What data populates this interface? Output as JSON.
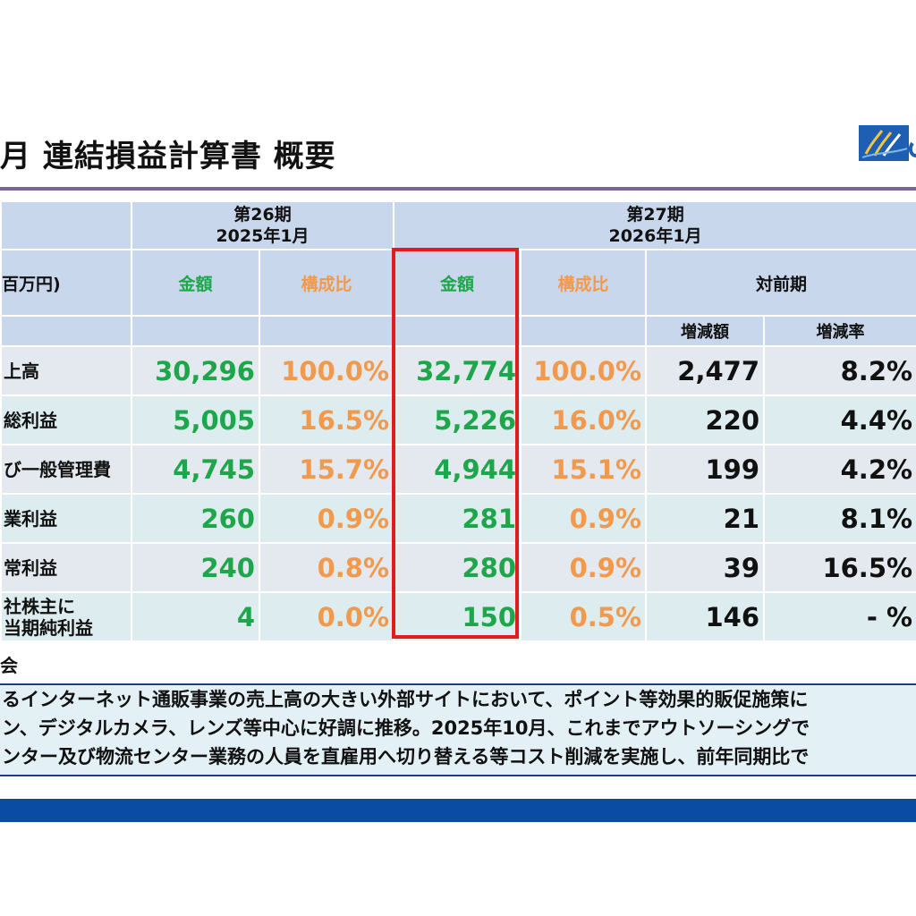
{
  "title": "月 連結損益計算書 概要",
  "colors": {
    "amount": "#1ea64a",
    "ratio": "#f19a4e",
    "highlight": "#e21b1b",
    "header_bg": "#c9d7ec",
    "bar": "#0a4ba3"
  },
  "table": {
    "period26": {
      "line1": "第26期",
      "line2": "2025年1月"
    },
    "period27": {
      "line1": "第27期",
      "line2": "2026年1月"
    },
    "unit_label": "百万円)",
    "amount_label": "金額",
    "ratio_label": "構成比",
    "yoy_label": "対前期",
    "diff_label": "増減額",
    "rate_label": "増減率",
    "rows": [
      {
        "label": "上高",
        "a26": "30,296",
        "r26": "100.0%",
        "a27": "32,774",
        "r27": "100.0%",
        "diff": "2,477",
        "rate": "8.2%"
      },
      {
        "label": "総利益",
        "a26": "5,005",
        "r26": "16.5%",
        "a27": "5,226",
        "r27": "16.0%",
        "diff": "220",
        "rate": "4.4%"
      },
      {
        "label": "び一般管理費",
        "a26": "4,745",
        "r26": "15.7%",
        "a27": "4,944",
        "r27": "15.1%",
        "diff": "199",
        "rate": "4.2%"
      },
      {
        "label": "業利益",
        "a26": "260",
        "r26": "0.9%",
        "a27": "281",
        "r27": "0.9%",
        "diff": "21",
        "rate": "8.1%"
      },
      {
        "label": "常利益",
        "a26": "240",
        "r26": "0.8%",
        "a27": "280",
        "r27": "0.9%",
        "diff": "39",
        "rate": "16.5%"
      },
      {
        "label_line1": "社株主に",
        "label_line2": "当期純利益",
        "a26": "4",
        "r26": "0.0%",
        "a27": "150",
        "r27": "0.5%",
        "diff": "146",
        "rate": "- %"
      }
    ]
  },
  "notes": {
    "heading": "会",
    "lines": [
      "るインターネット通販事業の売上高の大きい外部サイトにおいて、ポイント等効果的販促施策に",
      "ン、デジタルカメラ、レンズ等中心に好調に推移。2025年10月、これまでアウトソーシングで",
      "ンター及び物流センター業務の人員を直雇用へ切り替える等コスト削減を実施し、前年同期比で"
    ]
  }
}
